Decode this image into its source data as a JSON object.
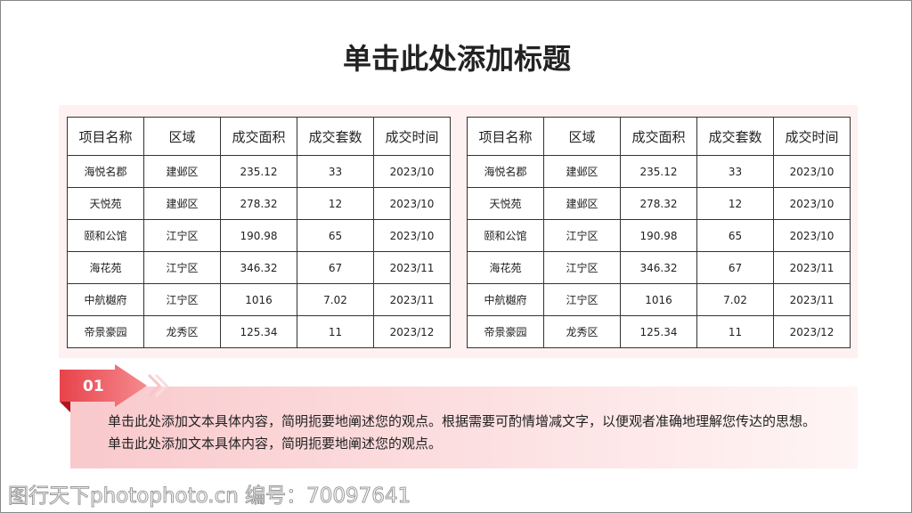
{
  "title": "单击此处添加标题",
  "tables": [
    {
      "headers": [
        "项目名称",
        "区域",
        "成交面积",
        "成交套数",
        "成交时间"
      ],
      "rows": [
        [
          "海悦名郡",
          "建邺区",
          "235.12",
          "33",
          "2023/10"
        ],
        [
          "天悦苑",
          "建邺区",
          "278.32",
          "12",
          "2023/10"
        ],
        [
          "颐和公馆",
          "江宁区",
          "190.98",
          "65",
          "2023/10"
        ],
        [
          "海花苑",
          "江宁区",
          "346.32",
          "67",
          "2023/11"
        ],
        [
          "中航樾府",
          "江宁区",
          "1016",
          "7.02",
          "2023/11"
        ],
        [
          "帝景豪园",
          "龙秀区",
          "125.34",
          "11",
          "2023/12"
        ]
      ]
    },
    {
      "headers": [
        "项目名称",
        "区域",
        "成交面积",
        "成交套数",
        "成交时间"
      ],
      "rows": [
        [
          "海悦名郡",
          "建邺区",
          "235.12",
          "33",
          "2023/10"
        ],
        [
          "天悦苑",
          "建邺区",
          "278.32",
          "12",
          "2023/10"
        ],
        [
          "颐和公馆",
          "江宁区",
          "190.98",
          "65",
          "2023/10"
        ],
        [
          "海花苑",
          "江宁区",
          "346.32",
          "67",
          "2023/11"
        ],
        [
          "中航樾府",
          "江宁区",
          "1016",
          "7.02",
          "2023/11"
        ],
        [
          "帝景豪园",
          "龙秀区",
          "125.34",
          "11",
          "2023/12"
        ]
      ]
    }
  ],
  "point": {
    "number": "01",
    "text": "单击此处添加文本具体内容，简明扼要地阐述您的观点。根据需要可酌情增减文字，以便观者准确地理解您传达的思想。单击此处添加文本具体内容，简明扼要地阐述您的观点。"
  },
  "watermark": "图行天下photophoto.cn 编号：70097641",
  "colors": {
    "accent": "#e8424a"
  }
}
